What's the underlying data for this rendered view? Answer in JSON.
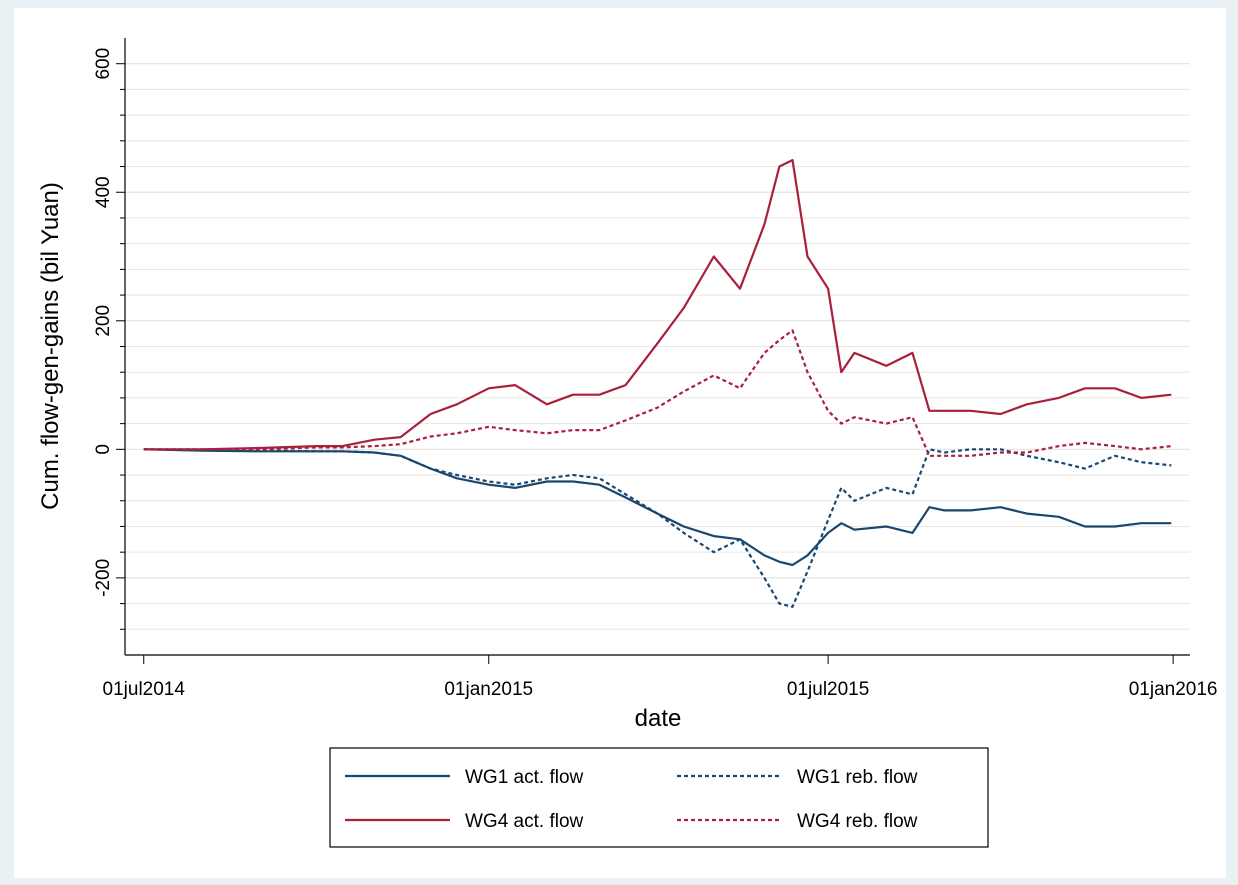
{
  "chart_data": {
    "type": "line",
    "xlabel": "date",
    "ylabel": "Cum. flow-gen-gains (bil Yuan)",
    "x": [
      "2014-07-01",
      "2014-08-01",
      "2014-09-01",
      "2014-10-01",
      "2014-10-15",
      "2014-11-01",
      "2014-11-15",
      "2014-12-01",
      "2014-12-15",
      "2015-01-01",
      "2015-01-15",
      "2015-02-01",
      "2015-02-15",
      "2015-03-01",
      "2015-03-15",
      "2015-04-01",
      "2015-04-15",
      "2015-05-01",
      "2015-05-15",
      "2015-05-28",
      "2015-06-05",
      "2015-06-12",
      "2015-06-20",
      "2015-07-01",
      "2015-07-08",
      "2015-07-15",
      "2015-08-01",
      "2015-08-15",
      "2015-08-24",
      "2015-09-01",
      "2015-09-15",
      "2015-10-01",
      "2015-10-15",
      "2015-11-01",
      "2015-11-15",
      "2015-12-01",
      "2015-12-15",
      "2015-12-31"
    ],
    "series": [
      {
        "name": "WG1 act. flow",
        "color": "#1a476f",
        "style": "solid",
        "values": [
          0,
          -2,
          -3,
          -3,
          -3,
          -5,
          -10,
          -30,
          -45,
          -55,
          -60,
          -50,
          -50,
          -55,
          -75,
          -100,
          -120,
          -135,
          -140,
          -165,
          -175,
          -180,
          -165,
          -130,
          -115,
          -125,
          -120,
          -130,
          -90,
          -95,
          -95,
          -90,
          -100,
          -105,
          -120,
          -120,
          -115,
          -115
        ]
      },
      {
        "name": "WG1 reb. flow",
        "color": "#1a476f",
        "style": "dash",
        "values": [
          0,
          -1,
          -2,
          -3,
          -3,
          -5,
          -10,
          -30,
          -40,
          -50,
          -55,
          -45,
          -40,
          -45,
          -70,
          -100,
          -130,
          -160,
          -140,
          -200,
          -240,
          -245,
          -190,
          -110,
          -60,
          -80,
          -60,
          -70,
          0,
          -5,
          0,
          0,
          -10,
          -20,
          -30,
          -10,
          -20,
          -25
        ]
      },
      {
        "name": "WG4 act. flow",
        "color": "#a8203b",
        "style": "solid",
        "values": [
          0,
          0,
          2,
          5,
          5,
          15,
          19,
          55,
          70,
          95,
          100,
          70,
          85,
          85,
          100,
          165,
          220,
          300,
          250,
          350,
          440,
          450,
          300,
          250,
          120,
          150,
          130,
          150,
          60,
          60,
          60,
          55,
          70,
          80,
          95,
          95,
          80,
          85
        ]
      },
      {
        "name": "WG4 reb. flow",
        "color": "#a8203b",
        "style": "dash",
        "values": [
          0,
          0,
          0,
          3,
          3,
          5,
          8,
          20,
          25,
          35,
          30,
          25,
          30,
          30,
          45,
          65,
          90,
          115,
          95,
          150,
          170,
          185,
          120,
          60,
          40,
          50,
          40,
          50,
          -10,
          -10,
          -10,
          -5,
          -5,
          5,
          10,
          5,
          0,
          5
        ]
      }
    ],
    "xlim": [
      "2014-06-21",
      "2016-01-10"
    ],
    "xticks": [
      {
        "value": "2014-07-01",
        "label": "01jul2014"
      },
      {
        "value": "2015-01-01",
        "label": "01jan2015"
      },
      {
        "value": "2015-07-01",
        "label": "01jul2015"
      },
      {
        "value": "2016-01-01",
        "label": "01jan2016"
      }
    ],
    "ylim": [
      -320,
      640
    ],
    "yticks": [
      -200,
      0,
      200,
      400,
      600
    ],
    "yminorticks": [
      -280,
      -240,
      -160,
      -120,
      -80,
      -40,
      40,
      80,
      120,
      160,
      240,
      280,
      320,
      360,
      440,
      480,
      520,
      560
    ],
    "grid": true
  }
}
